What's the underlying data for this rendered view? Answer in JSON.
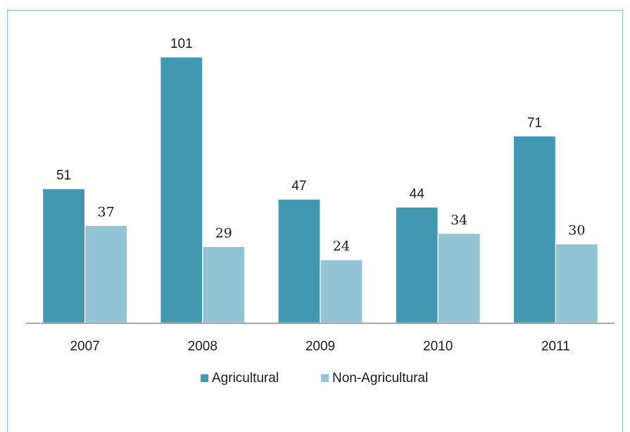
{
  "chart_data": {
    "type": "bar",
    "title": "",
    "categories": [
      "2007",
      "2008",
      "2009",
      "2010",
      "2011"
    ],
    "series": [
      {
        "name": "Agricultural",
        "values": [
          51,
          101,
          47,
          44,
          71
        ],
        "color": "#4198b0"
      },
      {
        "name": "Non-Agricultural",
        "values": [
          37,
          29,
          24,
          34,
          30
        ],
        "color": "#93c4d3"
      }
    ],
    "xlabel": "",
    "ylabel": "",
    "ylim": [
      0,
      101
    ],
    "grid": false,
    "legend_position": "bottom"
  },
  "colors": {
    "axis": "#888888",
    "frame": "#86c6c6"
  }
}
